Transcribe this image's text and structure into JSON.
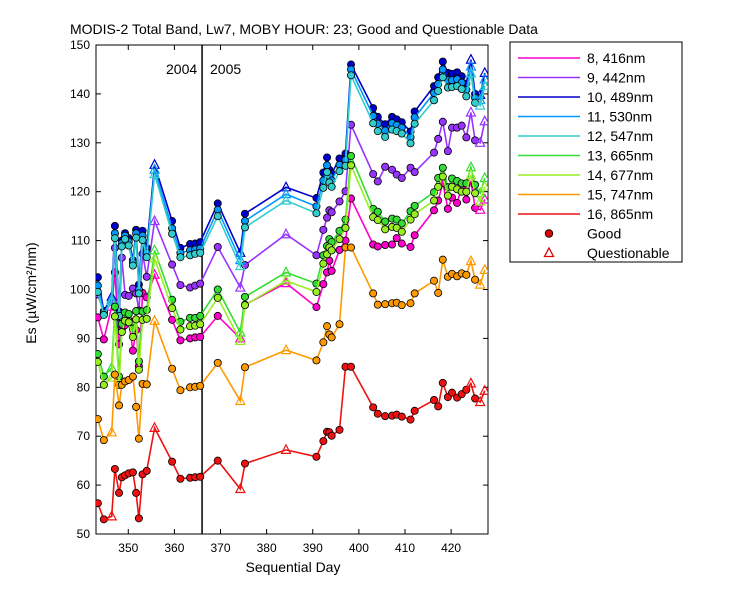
{
  "chart_data": {
    "type": "line",
    "title": "MODIS-2 Total Band,  Lw7, MOBY HOUR: 23;  Good and Questionable Data",
    "xlabel": "Sequential Day",
    "ylabel": "Es (µW/cm²/nm)",
    "xlim": [
      343,
      428
    ],
    "ylim": [
      50,
      150
    ],
    "xticks": [
      350,
      360,
      370,
      380,
      390,
      400,
      410,
      420
    ],
    "yticks": [
      50,
      60,
      70,
      80,
      90,
      100,
      110,
      120,
      130,
      140,
      150
    ],
    "grid": false,
    "legend_position": "outside-right",
    "annotations": {
      "year_left": "2004",
      "year_right": "2005",
      "divider_x": 366
    },
    "x": [
      343.4,
      344.7,
      346.4,
      347.1,
      348,
      348.6,
      349.3,
      350.1,
      351,
      351.7,
      352.3,
      353.1,
      354,
      355.7,
      359.5,
      361.3,
      363.4,
      364.5,
      365.6,
      369.4,
      374.3,
      375.3,
      384.2,
      390.8,
      392.3,
      393.1,
      393.6,
      394.1,
      395.8,
      397.1,
      398.3,
      403.1,
      404.1,
      405.7,
      407.2,
      408.2,
      409.3,
      411.2,
      412.1,
      416.3,
      417.2,
      418.2,
      419.3,
      420.2,
      421.3,
      422.3,
      423.3,
      424.3,
      425.2,
      426.3,
      427.3
    ],
    "quality": [
      "G",
      "G",
      "Q",
      "G",
      "G",
      "G",
      "G",
      "G",
      "G",
      "G",
      "G",
      "G",
      "G",
      "Q",
      "G",
      "G",
      "G",
      "G",
      "G",
      "G",
      "Q",
      "G",
      "Q",
      "G",
      "G",
      "G",
      "G",
      "G",
      "G",
      "G",
      "G",
      "G",
      "G",
      "G",
      "G",
      "G",
      "G",
      "G",
      "G",
      "G",
      "G",
      "G",
      "G",
      "G",
      "G",
      "G",
      "G",
      "Q",
      "G",
      "Q",
      "Q"
    ],
    "series": [
      {
        "name": "8, 416nm",
        "color": "#ff00cc",
        "values": [
          94.3,
          89.8,
          96.5,
          103.5,
          88.8,
          91.9,
          92.7,
          93.7,
          87.5,
          91.7,
          84.3,
          99.3,
          98.4,
          103.0,
          93.8,
          89.6,
          90.0,
          90.2,
          90.3,
          94.6,
          90.0,
          96.9,
          101.3,
          96.4,
          101.1,
          103.5,
          105.9,
          103.8,
          108.1,
          110.0,
          118.6,
          109.2,
          108.8,
          109.1,
          109.2,
          110.5,
          109.4,
          108.7,
          111.1,
          116.2,
          118.2,
          121.8,
          116.5,
          118.8,
          117.7,
          120.9,
          118.4,
          122.2,
          116.7,
          116.3,
          118.4
        ]
      },
      {
        "name": "9, 442nm",
        "color": "#9933ff",
        "values": [
          99.0,
          95.2,
          97.5,
          108.5,
          93.0,
          106.5,
          98.9,
          98.7,
          100.2,
          99.2,
          95.7,
          107.3,
          102.6,
          114.0,
          105.1,
          100.9,
          100.4,
          100.8,
          101.2,
          108.7,
          100.4,
          105.0,
          111.3,
          107.0,
          112.2,
          114.7,
          116.2,
          115.8,
          118.0,
          120.1,
          133.7,
          123.6,
          122.1,
          125.1,
          124.5,
          123.5,
          122.8,
          124.9,
          124.0,
          128.0,
          130.8,
          134.3,
          128.3,
          133.1,
          133.1,
          133.5,
          131.1,
          136.2,
          130.5,
          130.0,
          134.4
        ]
      },
      {
        "name": "10, 489nm",
        "color": "#0000cc",
        "values": [
          102.5,
          95.6,
          98.5,
          113.0,
          95.5,
          110.0,
          111.5,
          110.5,
          106.0,
          112.2,
          101.0,
          112.0,
          108.5,
          125.5,
          114.0,
          108.5,
          109.3,
          109.4,
          109.7,
          117.6,
          107.5,
          115.5,
          120.9,
          118.7,
          123.9,
          127.0,
          124.5,
          123.7,
          126.8,
          127.8,
          146.0,
          137.1,
          135.3,
          133.8,
          135.3,
          134.8,
          134.2,
          132.3,
          136.4,
          141.6,
          143.4,
          146.6,
          144.3,
          144.1,
          144.4,
          143.6,
          142.1,
          147.0,
          140.0,
          139.8,
          144.3
        ]
      },
      {
        "name": "11, 530nm",
        "color": "#0099ff",
        "values": [
          100.8,
          95.2,
          98.0,
          111.5,
          95.0,
          109.5,
          111.0,
          109.8,
          105.5,
          111.5,
          100.0,
          111.0,
          107.5,
          124.5,
          112.5,
          107.5,
          108.0,
          108.2,
          108.4,
          116.3,
          106.0,
          114.0,
          119.5,
          117.0,
          122.3,
          125.4,
          123.2,
          122.3,
          125.5,
          126.5,
          145.0,
          135.5,
          133.9,
          132.5,
          134.0,
          133.6,
          133.1,
          131.1,
          135.2,
          140.2,
          142.0,
          145.0,
          142.8,
          142.8,
          143.0,
          142.3,
          140.8,
          145.6,
          139.2,
          138.8,
          143.0
        ]
      },
      {
        "name": "12, 547nm",
        "color": "#33cccc",
        "values": [
          99.5,
          94.8,
          97.6,
          110.5,
          94.6,
          108.8,
          110.3,
          109.0,
          104.9,
          110.6,
          99.2,
          110.1,
          106.6,
          123.6,
          111.4,
          106.6,
          107.0,
          107.3,
          107.5,
          115.0,
          104.8,
          112.7,
          118.2,
          115.6,
          120.8,
          124.0,
          121.9,
          121.0,
          124.2,
          125.3,
          143.8,
          134.0,
          132.4,
          131.2,
          132.7,
          132.4,
          131.9,
          129.9,
          133.9,
          138.7,
          140.6,
          143.4,
          141.3,
          141.4,
          141.6,
          141.0,
          139.5,
          144.2,
          138.2,
          137.6,
          141.6
        ]
      },
      {
        "name": "13, 665nm",
        "color": "#33dd33",
        "values": [
          86.8,
          82.2,
          84.0,
          96.5,
          82.2,
          93.0,
          95.3,
          95.0,
          92.0,
          95.6,
          85.3,
          95.5,
          95.8,
          108.0,
          97.9,
          93.4,
          94.2,
          94.2,
          94.6,
          100.0,
          91.2,
          98.5,
          103.5,
          101.2,
          107.0,
          108.9,
          110.3,
          109.7,
          112.0,
          114.3,
          127.3,
          116.5,
          115.9,
          113.9,
          114.5,
          114.3,
          113.5,
          116.0,
          117.1,
          119.9,
          122.8,
          124.9,
          120.9,
          122.7,
          122.2,
          121.7,
          121.7,
          125.0,
          121.4,
          119.7,
          122.8
        ]
      },
      {
        "name": "14, 677nm",
        "color": "#99ee22",
        "values": [
          85.2,
          80.5,
          82.0,
          94.5,
          80.5,
          91.3,
          93.6,
          93.3,
          90.3,
          93.9,
          83.6,
          93.8,
          94.0,
          106.3,
          96.2,
          91.8,
          92.5,
          92.6,
          92.9,
          98.3,
          89.5,
          96.8,
          101.8,
          99.5,
          105.3,
          107.2,
          108.6,
          108.0,
          110.3,
          112.6,
          125.4,
          114.8,
          114.2,
          112.3,
          112.8,
          112.6,
          111.8,
          114.3,
          115.4,
          118.2,
          121.0,
          123.1,
          119.2,
          121.0,
          120.5,
          120.0,
          120.0,
          123.4,
          119.7,
          118.0,
          121.0
        ]
      },
      {
        "name": "15, 747nm",
        "color": "#ff9900",
        "values": [
          73.5,
          69.2,
          70.8,
          82.6,
          76.3,
          80.5,
          81.2,
          81.5,
          82.2,
          76.0,
          69.5,
          80.7,
          80.6,
          93.6,
          83.8,
          79.4,
          80.0,
          80.1,
          80.3,
          85.0,
          77.2,
          84.1,
          87.6,
          85.5,
          89.2,
          92.5,
          90.8,
          90.2,
          92.9,
          108.6,
          108.6,
          99.2,
          96.9,
          97.0,
          97.2,
          97.3,
          96.8,
          97.2,
          99.2,
          101.8,
          99.3,
          106.1,
          102.6,
          103.2,
          102.7,
          103.3,
          103.0,
          105.8,
          102.0,
          101.0,
          104.0
        ]
      },
      {
        "name": "16, 865nm",
        "color": "#ee1111",
        "values": [
          56.3,
          53.0,
          53.6,
          63.3,
          58.4,
          61.6,
          62.0,
          62.4,
          62.6,
          58.4,
          53.2,
          62.2,
          62.9,
          71.7,
          64.8,
          61.3,
          61.5,
          61.6,
          61.7,
          65.0,
          59.2,
          64.4,
          67.2,
          65.8,
          69.0,
          70.9,
          70.8,
          70.1,
          71.3,
          84.2,
          84.2,
          75.9,
          74.6,
          74.1,
          74.2,
          74.4,
          74.0,
          73.4,
          75.2,
          77.4,
          76.1,
          80.9,
          78.0,
          78.9,
          77.9,
          78.6,
          79.5,
          80.8,
          77.7,
          77.0,
          79.3
        ]
      }
    ],
    "legend": {
      "good_label": "Good",
      "questionable_label": "Questionable"
    }
  }
}
